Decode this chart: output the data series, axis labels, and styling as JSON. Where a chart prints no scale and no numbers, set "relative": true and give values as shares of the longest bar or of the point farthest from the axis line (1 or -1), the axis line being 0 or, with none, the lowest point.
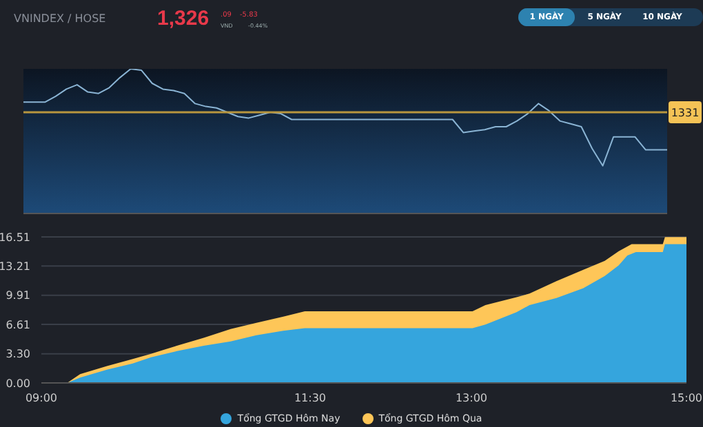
{
  "chart_data": [
    {
      "type": "line",
      "title": "VNINDEX / HOSE",
      "relative": true,
      "grid": false,
      "legend": false,
      "annotations": [
        "1,326",
        ".09",
        "VND",
        "-5.83",
        "-0.44%",
        "1 NGÀY",
        "5 NGÀY",
        "10 NGÀY",
        "1331"
      ],
      "ref_lines": [
        {
          "axis": "y",
          "value": 0.7,
          "color": "#b8963e"
        }
      ],
      "categories": [
        null,
        null,
        null,
        null,
        null,
        null,
        null,
        null,
        null,
        null,
        null,
        null,
        null,
        null,
        null,
        null,
        null,
        null,
        null,
        null,
        null,
        null,
        null,
        null,
        null,
        null,
        null,
        null,
        null,
        null,
        null,
        null,
        null,
        null,
        null,
        null,
        null,
        null,
        null,
        null,
        null,
        null,
        null,
        null,
        null,
        null,
        null,
        null,
        null,
        null,
        null,
        null,
        null,
        null,
        null,
        null,
        null,
        null,
        null,
        null,
        null
      ],
      "series": [
        {
          "color": "#8ab4d4",
          "values": [
            0.77,
            0.77,
            0.77,
            0.81,
            0.86,
            0.89,
            0.84,
            0.83,
            0.87,
            0.94,
            1,
            0.99,
            0.9,
            0.86,
            0.85,
            0.83,
            0.76,
            0.74,
            0.73,
            0.7,
            0.67,
            0.66,
            0.68,
            0.7,
            0.69,
            0.65,
            0.65,
            0.65,
            0.65,
            0.65,
            0.65,
            0.65,
            0.65,
            0.65,
            0.65,
            0.65,
            0.65,
            0.65,
            0.65,
            0.65,
            0.65,
            0.56,
            0.57,
            0.58,
            0.6,
            0.6,
            0.64,
            0.69,
            0.76,
            0.71,
            0.64,
            0.62,
            0.6,
            0.45,
            0.33,
            0.53,
            0.53,
            0.53,
            0.44,
            0.44,
            0.44
          ]
        }
      ]
    },
    {
      "type": "area",
      "xlim": [
        9,
        15
      ],
      "xticks": [
        {
          "value": 9,
          "label": "09:00"
        },
        {
          "value": 11.5,
          "label": "11:30"
        },
        {
          "value": 13,
          "label": "13:00"
        },
        {
          "value": 15,
          "label": "15:00"
        }
      ],
      "ylim": [
        0,
        16.51
      ],
      "yticks": [
        {
          "value": 0,
          "label": "0.00"
        },
        {
          "value": 3.3,
          "label": "3.30"
        },
        6.61,
        9.91,
        13.21,
        16.51
      ],
      "grid": "y",
      "legend": "bottom",
      "series": [
        {
          "name": "Tổng GTGD Hôm Nay",
          "color": "#35a5dd",
          "x": [
            9,
            9.24,
            9.36,
            9.61,
            9.85,
            10.02,
            10.26,
            10.51,
            10.76,
            11,
            11.25,
            11.45,
            13.01,
            13.13,
            13.42,
            13.54,
            13.79,
            14.04,
            14.24,
            14.37,
            14.45,
            14.53,
            14.78,
            14.8,
            15
          ],
          "values": [
            0,
            0,
            0.6,
            1.5,
            2.2,
            2.9,
            3.6,
            4.2,
            4.7,
            5.4,
            5.9,
            6.2,
            6.2,
            6.6,
            8,
            8.8,
            9.6,
            10.7,
            12.1,
            13.3,
            14.4,
            14.8,
            14.8,
            15.7,
            15.7
          ]
        },
        {
          "name": "Tổng GTGD Hôm Qua",
          "color": "#fec658",
          "x": [
            9,
            9.24,
            9.36,
            9.61,
            9.85,
            10.02,
            10.26,
            10.51,
            10.76,
            11,
            11.25,
            11.45,
            13.01,
            13.13,
            13.42,
            13.54,
            13.79,
            14.04,
            14.24,
            14.37,
            14.49,
            14.78,
            14.8,
            15
          ],
          "values": [
            0,
            0,
            1,
            1.9,
            2.7,
            3.3,
            4.2,
            5.1,
            6.1,
            6.8,
            7.5,
            8.1,
            8.1,
            8.8,
            9.7,
            10.1,
            11.5,
            12.8,
            13.8,
            14.9,
            15.7,
            15.7,
            16.5,
            16.5
          ]
        }
      ]
    }
  ]
}
